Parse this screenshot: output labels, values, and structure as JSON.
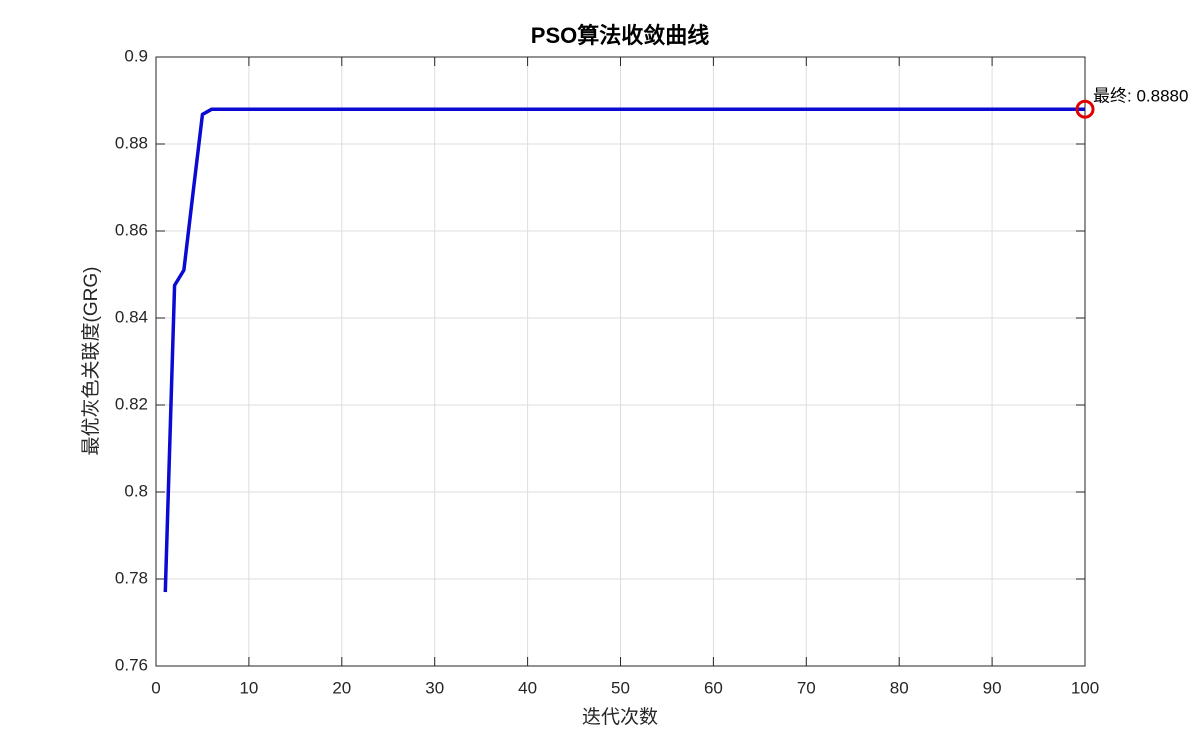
{
  "chart_data": {
    "type": "line",
    "title": "PSO算法收敛曲线",
    "x_label": "迭代次数",
    "y_label": "最优灰色关联度(GRG)",
    "x": [
      1,
      2,
      3,
      4,
      5,
      6,
      7,
      8,
      9,
      10,
      11,
      12,
      13,
      14,
      15,
      16,
      17,
      18,
      19,
      20,
      21,
      22,
      23,
      24,
      25,
      26,
      27,
      28,
      29,
      30,
      31,
      32,
      33,
      34,
      35,
      36,
      37,
      38,
      39,
      40,
      41,
      42,
      43,
      44,
      45,
      46,
      47,
      48,
      49,
      50,
      51,
      52,
      53,
      54,
      55,
      56,
      57,
      58,
      59,
      60,
      61,
      62,
      63,
      64,
      65,
      66,
      67,
      68,
      69,
      70,
      71,
      72,
      73,
      74,
      75,
      76,
      77,
      78,
      79,
      80,
      81,
      82,
      83,
      84,
      85,
      86,
      87,
      88,
      89,
      90,
      91,
      92,
      93,
      94,
      95,
      96,
      97,
      98,
      99,
      100
    ],
    "series": [
      {
        "color": "#0a0ad2",
        "values": [
          0.777,
          0.8475,
          0.851,
          0.869,
          0.8868,
          0.888,
          0.888,
          0.888,
          0.888,
          0.888,
          0.888,
          0.888,
          0.888,
          0.888,
          0.888,
          0.888,
          0.888,
          0.888,
          0.888,
          0.888,
          0.888,
          0.888,
          0.888,
          0.888,
          0.888,
          0.888,
          0.888,
          0.888,
          0.888,
          0.888,
          0.888,
          0.888,
          0.888,
          0.888,
          0.888,
          0.888,
          0.888,
          0.888,
          0.888,
          0.888,
          0.888,
          0.888,
          0.888,
          0.888,
          0.888,
          0.888,
          0.888,
          0.888,
          0.888,
          0.888,
          0.888,
          0.888,
          0.888,
          0.888,
          0.888,
          0.888,
          0.888,
          0.888,
          0.888,
          0.888,
          0.888,
          0.888,
          0.888,
          0.888,
          0.888,
          0.888,
          0.888,
          0.888,
          0.888,
          0.888,
          0.888,
          0.888,
          0.888,
          0.888,
          0.888,
          0.888,
          0.888,
          0.888,
          0.888,
          0.888,
          0.888,
          0.888,
          0.888,
          0.888,
          0.888,
          0.888,
          0.888,
          0.888,
          0.888,
          0.888,
          0.888,
          0.888,
          0.888,
          0.888,
          0.888,
          0.888,
          0.888,
          0.888,
          0.888,
          0.888
        ]
      }
    ],
    "final_marker_color": "#e00000",
    "annotation": "最终: 0.8880",
    "xlim": [
      0,
      100
    ],
    "xticks": [
      0,
      10,
      20,
      30,
      40,
      50,
      60,
      70,
      80,
      90,
      100
    ],
    "ylim": [
      0.76,
      0.9
    ],
    "yticks": [
      0.76,
      0.78,
      0.8,
      0.82,
      0.84,
      0.86,
      0.88,
      0.9
    ],
    "grid": true
  }
}
